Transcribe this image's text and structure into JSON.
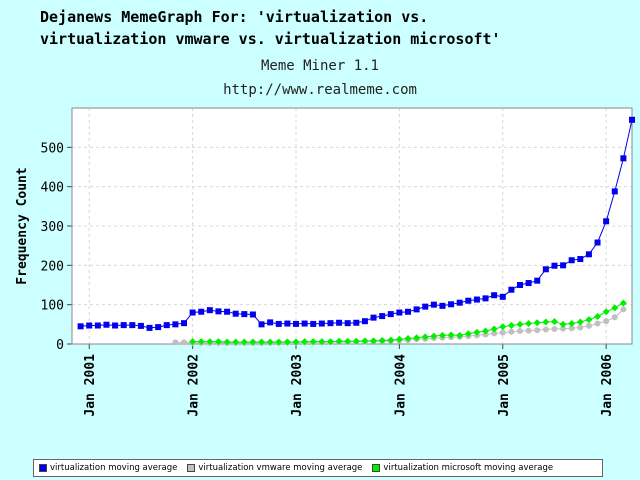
{
  "header": {
    "title_line1": "Dejanews MemeGraph For: 'virtualization vs.",
    "title_line2": "virtualization vmware vs. virtualization microsoft'",
    "app_name": "Meme Miner 1.1",
    "url": "http://www.realmeme.com"
  },
  "chart_data": {
    "type": "line",
    "ylabel": "Frequency Count",
    "ylim": [
      0,
      600
    ],
    "yticks": [
      0,
      100,
      200,
      300,
      400,
      500
    ],
    "xlim": [
      "2000-11",
      "2006-04"
    ],
    "xticks": [
      "Jan 2001",
      "Jan 2002",
      "Jan 2003",
      "Jan 2004",
      "Jan 2005",
      "Jan 2006"
    ],
    "grid": true,
    "legend_position": "bottom",
    "series": [
      {
        "name": "virtualization moving average",
        "color": "#0000ee",
        "marker": "square",
        "points": [
          [
            "2000-12",
            45
          ],
          [
            "2001-01",
            47
          ],
          [
            "2001-02",
            47
          ],
          [
            "2001-03",
            49
          ],
          [
            "2001-04",
            47
          ],
          [
            "2001-05",
            48
          ],
          [
            "2001-06",
            48
          ],
          [
            "2001-07",
            46
          ],
          [
            "2001-08",
            41
          ],
          [
            "2001-09",
            43
          ],
          [
            "2001-10",
            48
          ],
          [
            "2001-11",
            50
          ],
          [
            "2001-12",
            53
          ],
          [
            "2002-01",
            80
          ],
          [
            "2002-02",
            82
          ],
          [
            "2002-03",
            86
          ],
          [
            "2002-04",
            83
          ],
          [
            "2002-05",
            82
          ],
          [
            "2002-06",
            77
          ],
          [
            "2002-07",
            76
          ],
          [
            "2002-08",
            75
          ],
          [
            "2002-09",
            50
          ],
          [
            "2002-10",
            55
          ],
          [
            "2002-11",
            51
          ],
          [
            "2002-12",
            52
          ],
          [
            "2003-01",
            51
          ],
          [
            "2003-02",
            52
          ],
          [
            "2003-03",
            51
          ],
          [
            "2003-04",
            52
          ],
          [
            "2003-05",
            53
          ],
          [
            "2003-06",
            54
          ],
          [
            "2003-07",
            53
          ],
          [
            "2003-08",
            54
          ],
          [
            "2003-09",
            58
          ],
          [
            "2003-10",
            67
          ],
          [
            "2003-11",
            71
          ],
          [
            "2003-12",
            76
          ],
          [
            "2004-01",
            80
          ],
          [
            "2004-02",
            82
          ],
          [
            "2004-03",
            88
          ],
          [
            "2004-04",
            95
          ],
          [
            "2004-05",
            100
          ],
          [
            "2004-06",
            97
          ],
          [
            "2004-07",
            101
          ],
          [
            "2004-08",
            105
          ],
          [
            "2004-09",
            110
          ],
          [
            "2004-10",
            113
          ],
          [
            "2004-11",
            116
          ],
          [
            "2004-12",
            124
          ],
          [
            "2005-01",
            120
          ],
          [
            "2005-02",
            138
          ],
          [
            "2005-03",
            150
          ],
          [
            "2005-04",
            155
          ],
          [
            "2005-05",
            161
          ],
          [
            "2005-06",
            190
          ],
          [
            "2005-07",
            199
          ],
          [
            "2005-08",
            200
          ],
          [
            "2005-09",
            213
          ],
          [
            "2005-10",
            216
          ],
          [
            "2005-11",
            228
          ],
          [
            "2005-12",
            258
          ],
          [
            "2006-01",
            312
          ],
          [
            "2006-02",
            388
          ],
          [
            "2006-03",
            472
          ],
          [
            "2006-04",
            570
          ]
        ]
      },
      {
        "name": "virtualization vmware moving average",
        "color": "#c0c0c0",
        "marker": "circle",
        "points": [
          [
            "2001-11",
            4
          ],
          [
            "2001-12",
            4
          ],
          [
            "2002-01",
            3
          ],
          [
            "2002-02",
            3
          ],
          [
            "2002-03",
            3
          ],
          [
            "2002-04",
            3
          ],
          [
            "2002-05",
            3
          ],
          [
            "2002-06",
            3
          ],
          [
            "2002-07",
            3
          ],
          [
            "2002-08",
            3
          ],
          [
            "2002-09",
            3
          ],
          [
            "2002-10",
            3
          ],
          [
            "2002-11",
            3
          ],
          [
            "2002-12",
            4
          ],
          [
            "2003-01",
            4
          ],
          [
            "2003-02",
            4
          ],
          [
            "2003-03",
            4
          ],
          [
            "2003-04",
            4
          ],
          [
            "2003-05",
            5
          ],
          [
            "2003-06",
            5
          ],
          [
            "2003-07",
            5
          ],
          [
            "2003-08",
            6
          ],
          [
            "2003-09",
            6
          ],
          [
            "2003-10",
            7
          ],
          [
            "2003-11",
            7
          ],
          [
            "2003-12",
            8
          ],
          [
            "2004-01",
            9
          ],
          [
            "2004-02",
            10
          ],
          [
            "2004-03",
            12
          ],
          [
            "2004-04",
            13
          ],
          [
            "2004-05",
            15
          ],
          [
            "2004-06",
            16
          ],
          [
            "2004-07",
            17
          ],
          [
            "2004-08",
            18
          ],
          [
            "2004-09",
            20
          ],
          [
            "2004-10",
            22
          ],
          [
            "2004-11",
            24
          ],
          [
            "2004-12",
            27
          ],
          [
            "2005-01",
            29
          ],
          [
            "2005-02",
            31
          ],
          [
            "2005-03",
            33
          ],
          [
            "2005-04",
            34
          ],
          [
            "2005-05",
            35
          ],
          [
            "2005-06",
            37
          ],
          [
            "2005-07",
            38
          ],
          [
            "2005-08",
            39
          ],
          [
            "2005-09",
            40
          ],
          [
            "2005-10",
            42
          ],
          [
            "2005-11",
            46
          ],
          [
            "2005-12",
            52
          ],
          [
            "2006-01",
            58
          ],
          [
            "2006-02",
            68
          ],
          [
            "2006-03",
            88
          ]
        ]
      },
      {
        "name": "virtualization microsoft moving average",
        "color": "#00ee00",
        "marker": "diamond",
        "points": [
          [
            "2002-01",
            6
          ],
          [
            "2002-02",
            6
          ],
          [
            "2002-03",
            6
          ],
          [
            "2002-04",
            6
          ],
          [
            "2002-05",
            5
          ],
          [
            "2002-06",
            5
          ],
          [
            "2002-07",
            5
          ],
          [
            "2002-08",
            5
          ],
          [
            "2002-09",
            5
          ],
          [
            "2002-10",
            5
          ],
          [
            "2002-11",
            5
          ],
          [
            "2002-12",
            5
          ],
          [
            "2003-01",
            5
          ],
          [
            "2003-02",
            6
          ],
          [
            "2003-03",
            6
          ],
          [
            "2003-04",
            6
          ],
          [
            "2003-05",
            6
          ],
          [
            "2003-06",
            7
          ],
          [
            "2003-07",
            7
          ],
          [
            "2003-08",
            7
          ],
          [
            "2003-09",
            8
          ],
          [
            "2003-10",
            8
          ],
          [
            "2003-11",
            9
          ],
          [
            "2003-12",
            10
          ],
          [
            "2004-01",
            12
          ],
          [
            "2004-02",
            14
          ],
          [
            "2004-03",
            16
          ],
          [
            "2004-04",
            18
          ],
          [
            "2004-05",
            20
          ],
          [
            "2004-06",
            22
          ],
          [
            "2004-07",
            23
          ],
          [
            "2004-08",
            22
          ],
          [
            "2004-09",
            26
          ],
          [
            "2004-10",
            30
          ],
          [
            "2004-11",
            33
          ],
          [
            "2004-12",
            38
          ],
          [
            "2005-01",
            44
          ],
          [
            "2005-02",
            47
          ],
          [
            "2005-03",
            50
          ],
          [
            "2005-04",
            52
          ],
          [
            "2005-05",
            54
          ],
          [
            "2005-06",
            56
          ],
          [
            "2005-07",
            57
          ],
          [
            "2005-08",
            50
          ],
          [
            "2005-09",
            52
          ],
          [
            "2005-10",
            56
          ],
          [
            "2005-11",
            62
          ],
          [
            "2005-12",
            70
          ],
          [
            "2006-01",
            82
          ],
          [
            "2006-02",
            92
          ],
          [
            "2006-03",
            104
          ]
        ]
      }
    ]
  }
}
